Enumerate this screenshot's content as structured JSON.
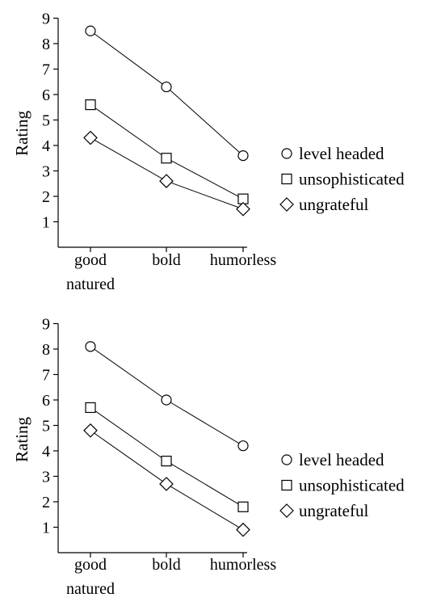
{
  "chart_data": [
    {
      "type": "line",
      "ylabel": "Rating",
      "ylim": [
        0,
        9
      ],
      "yticks": [
        1,
        2,
        3,
        4,
        5,
        6,
        7,
        8,
        9
      ],
      "categories": [
        [
          "good",
          "natured"
        ],
        [
          "bold"
        ],
        [
          "humorless"
        ]
      ],
      "series": [
        {
          "name": "level headed",
          "marker": "circle",
          "values": [
            8.5,
            6.3,
            3.6
          ]
        },
        {
          "name": "unsophisticated",
          "marker": "square",
          "values": [
            5.6,
            3.5,
            1.9
          ]
        },
        {
          "name": "ungrateful",
          "marker": "diamond",
          "values": [
            4.3,
            2.6,
            1.5
          ]
        }
      ],
      "grid": false,
      "legend": "right"
    },
    {
      "type": "line",
      "ylabel": "Rating",
      "ylim": [
        0,
        9
      ],
      "yticks": [
        1,
        2,
        3,
        4,
        5,
        6,
        7,
        8,
        9
      ],
      "categories": [
        [
          "good",
          "natured"
        ],
        [
          "bold"
        ],
        [
          "humorless"
        ]
      ],
      "series": [
        {
          "name": "level headed",
          "marker": "circle",
          "values": [
            8.1,
            6.0,
            4.2
          ]
        },
        {
          "name": "unsophisticated",
          "marker": "square",
          "values": [
            5.7,
            3.6,
            1.8
          ]
        },
        {
          "name": "ungrateful",
          "marker": "diamond",
          "values": [
            4.8,
            2.7,
            0.9
          ]
        }
      ],
      "grid": false,
      "legend": "right"
    }
  ]
}
